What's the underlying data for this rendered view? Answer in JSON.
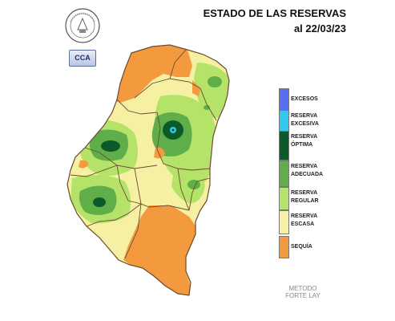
{
  "header": {
    "title": "ESTADO DE LAS RESERVAS",
    "date": "al 22/03/23"
  },
  "logos": {
    "cca": "CCA"
  },
  "legend": [
    {
      "label": "EXCESOS",
      "color": "#5a6ef0"
    },
    {
      "label": "RESERVA\nEXCESIVA",
      "color": "#33c8f0"
    },
    {
      "label": "RESERVA\nÓPTIMA",
      "color": "#0b5a2a"
    },
    {
      "label": "RESERVA\nADECUADA",
      "color": "#5fae4a"
    },
    {
      "label": "RESERVA\nREGULAR",
      "color": "#b5e36a"
    },
    {
      "label": "RESERVA\nESCASA",
      "color": "#f6f0a2"
    },
    {
      "label": "SEQUÍA",
      "color": "#f39a3f"
    }
  ],
  "footer": {
    "method_line1": "METODO",
    "method_line2": "FORTE LAY"
  }
}
